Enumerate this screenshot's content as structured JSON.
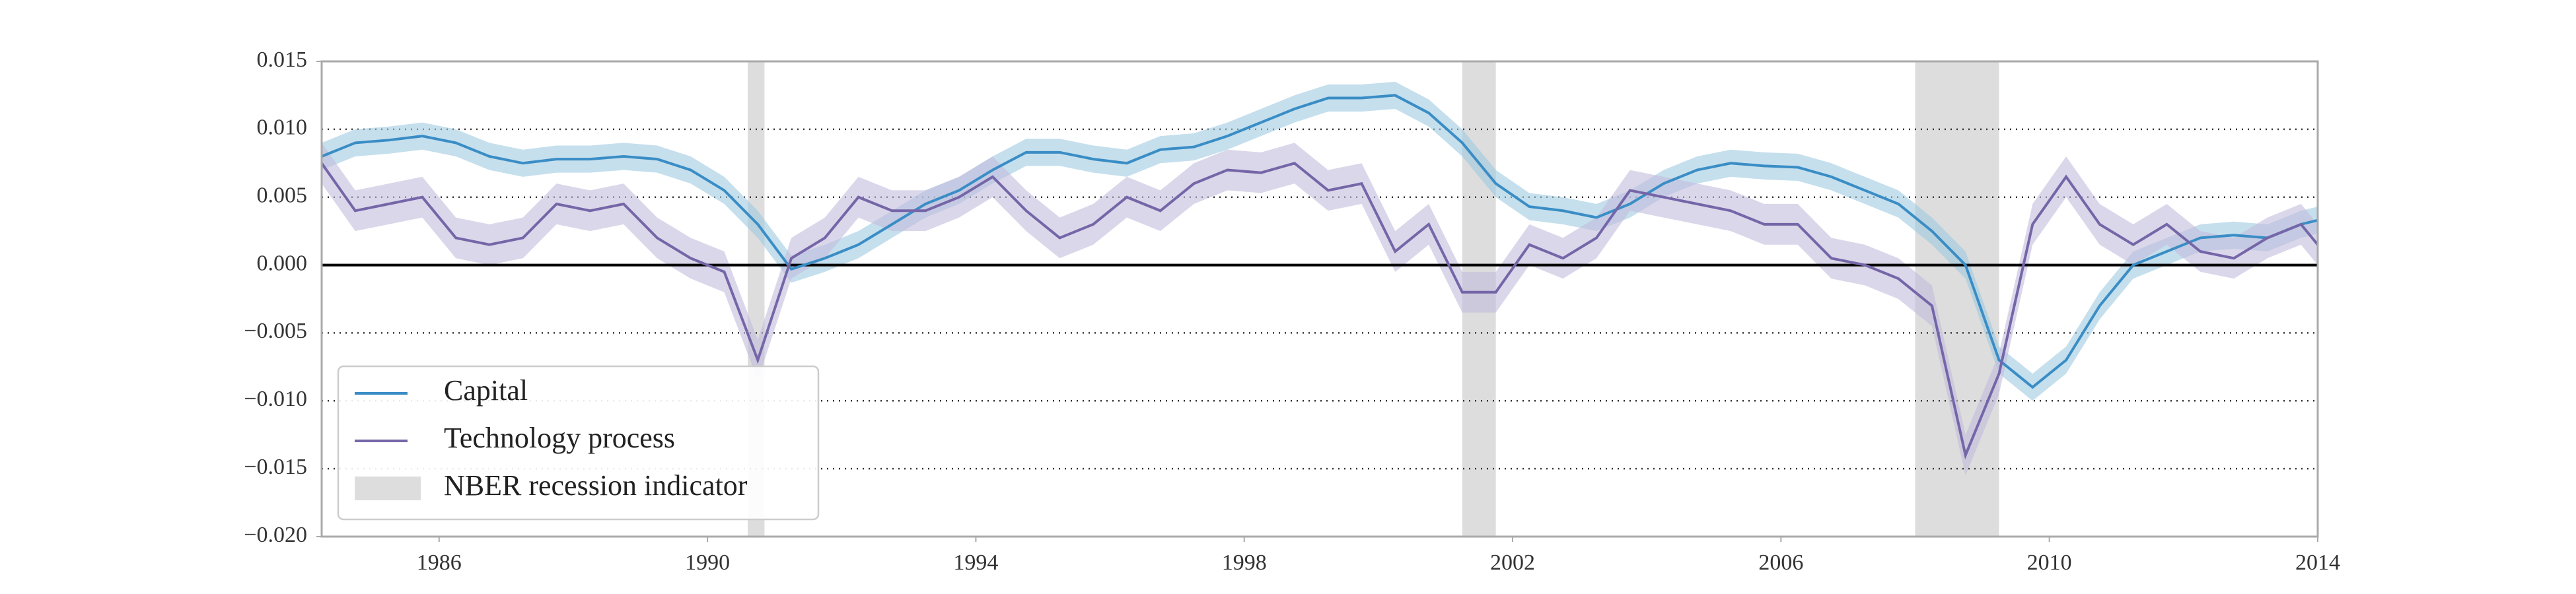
{
  "chart_data": {
    "type": "line",
    "x": [
      1984.25,
      1984.75,
      1985.25,
      1985.75,
      1986.25,
      1986.75,
      1987.25,
      1987.75,
      1988.25,
      1988.75,
      1989.25,
      1989.75,
      1990.25,
      1990.75,
      1991.25,
      1991.75,
      1992.25,
      1992.75,
      1993.25,
      1993.75,
      1994.25,
      1994.75,
      1995.25,
      1995.75,
      1996.25,
      1996.75,
      1997.25,
      1997.75,
      1998.25,
      1998.75,
      1999.25,
      1999.75,
      2000.25,
      2000.75,
      2001.25,
      2001.75,
      2002.25,
      2002.75,
      2003.25,
      2003.75,
      2004.25,
      2004.75,
      2005.25,
      2005.75,
      2006.25,
      2006.75,
      2007.25,
      2007.75,
      2008.25,
      2008.75,
      2009.25,
      2009.75,
      2010.25,
      2010.75,
      2011.25,
      2011.75,
      2012.25,
      2012.75,
      2013.25,
      2013.75,
      2014
    ],
    "series": [
      {
        "name": "Capital",
        "color": "#3a8dc5",
        "band_color": "#9ecae1",
        "band": 0.001,
        "values": [
          0.008,
          0.009,
          0.0092,
          0.0095,
          0.009,
          0.008,
          0.0075,
          0.0078,
          0.0078,
          0.008,
          0.0078,
          0.007,
          0.0055,
          0.003,
          -0.0003,
          0.0005,
          0.0015,
          0.003,
          0.0045,
          0.0055,
          0.007,
          0.0083,
          0.0083,
          0.0078,
          0.0075,
          0.0085,
          0.0087,
          0.0095,
          0.0105,
          0.0115,
          0.0123,
          0.0123,
          0.0125,
          0.0112,
          0.009,
          0.006,
          0.0043,
          0.004,
          0.0035,
          0.0045,
          0.006,
          0.007,
          0.0075,
          0.0073,
          0.0072,
          0.0065,
          0.0055,
          0.0045,
          0.0025,
          0,
          -0.007,
          -0.009,
          -0.007,
          -0.003,
          0,
          0.001,
          0.002,
          0.0022,
          0.002,
          0.003,
          0.0033
        ]
      },
      {
        "name": "Technology process",
        "color": "#7566a8",
        "band_color": "#c3bcdc",
        "band": 0.0015,
        "values": [
          0.0075,
          0.004,
          0.0045,
          0.005,
          0.002,
          0.0015,
          0.002,
          0.0045,
          0.004,
          0.0045,
          0.002,
          0.0005,
          -0.0005,
          -0.007,
          0.0005,
          0.002,
          0.005,
          0.004,
          0.004,
          0.005,
          0.0065,
          0.004,
          0.002,
          0.003,
          0.005,
          0.004,
          0.006,
          0.007,
          0.0068,
          0.0075,
          0.0055,
          0.006,
          0.001,
          0.003,
          -0.002,
          -0.002,
          0.0015,
          0.0005,
          0.002,
          0.0055,
          0.005,
          0.0045,
          0.004,
          0.003,
          0.003,
          0.0005,
          0,
          -0.001,
          -0.003,
          -0.014,
          -0.008,
          0.003,
          0.0065,
          0.003,
          0.0015,
          0.003,
          0.001,
          0.0005,
          0.002,
          0.003,
          0.0015
        ]
      }
    ],
    "shaded_spans": [
      [
        1990.6,
        1990.85
      ],
      [
        2001.25,
        2001.75
      ],
      [
        2008,
        2009.25
      ]
    ],
    "shaded_label": "NBER recession indicator",
    "shaded_color": "#dddddd",
    "hline": 0,
    "xlim": [
      1984.25,
      2014
    ],
    "xticks": [
      1986,
      1990,
      1994,
      1998,
      2002,
      2006,
      2010,
      2014
    ],
    "ylim": [
      -0.02,
      0.015
    ],
    "yticks": [
      {
        "value": -0.02,
        "label": "−0.020"
      },
      {
        "value": -0.015,
        "label": "−0.015"
      },
      {
        "value": -0.01,
        "label": "−0.010"
      },
      {
        "value": -0.005,
        "label": "−0.005"
      },
      {
        "value": 0,
        "label": "0.000"
      },
      {
        "value": 0.005,
        "label": "0.005"
      },
      {
        "value": 0.01,
        "label": "0.010"
      },
      {
        "value": 0.015,
        "label": "0.015"
      }
    ],
    "grid": true,
    "legend": "lower left"
  }
}
